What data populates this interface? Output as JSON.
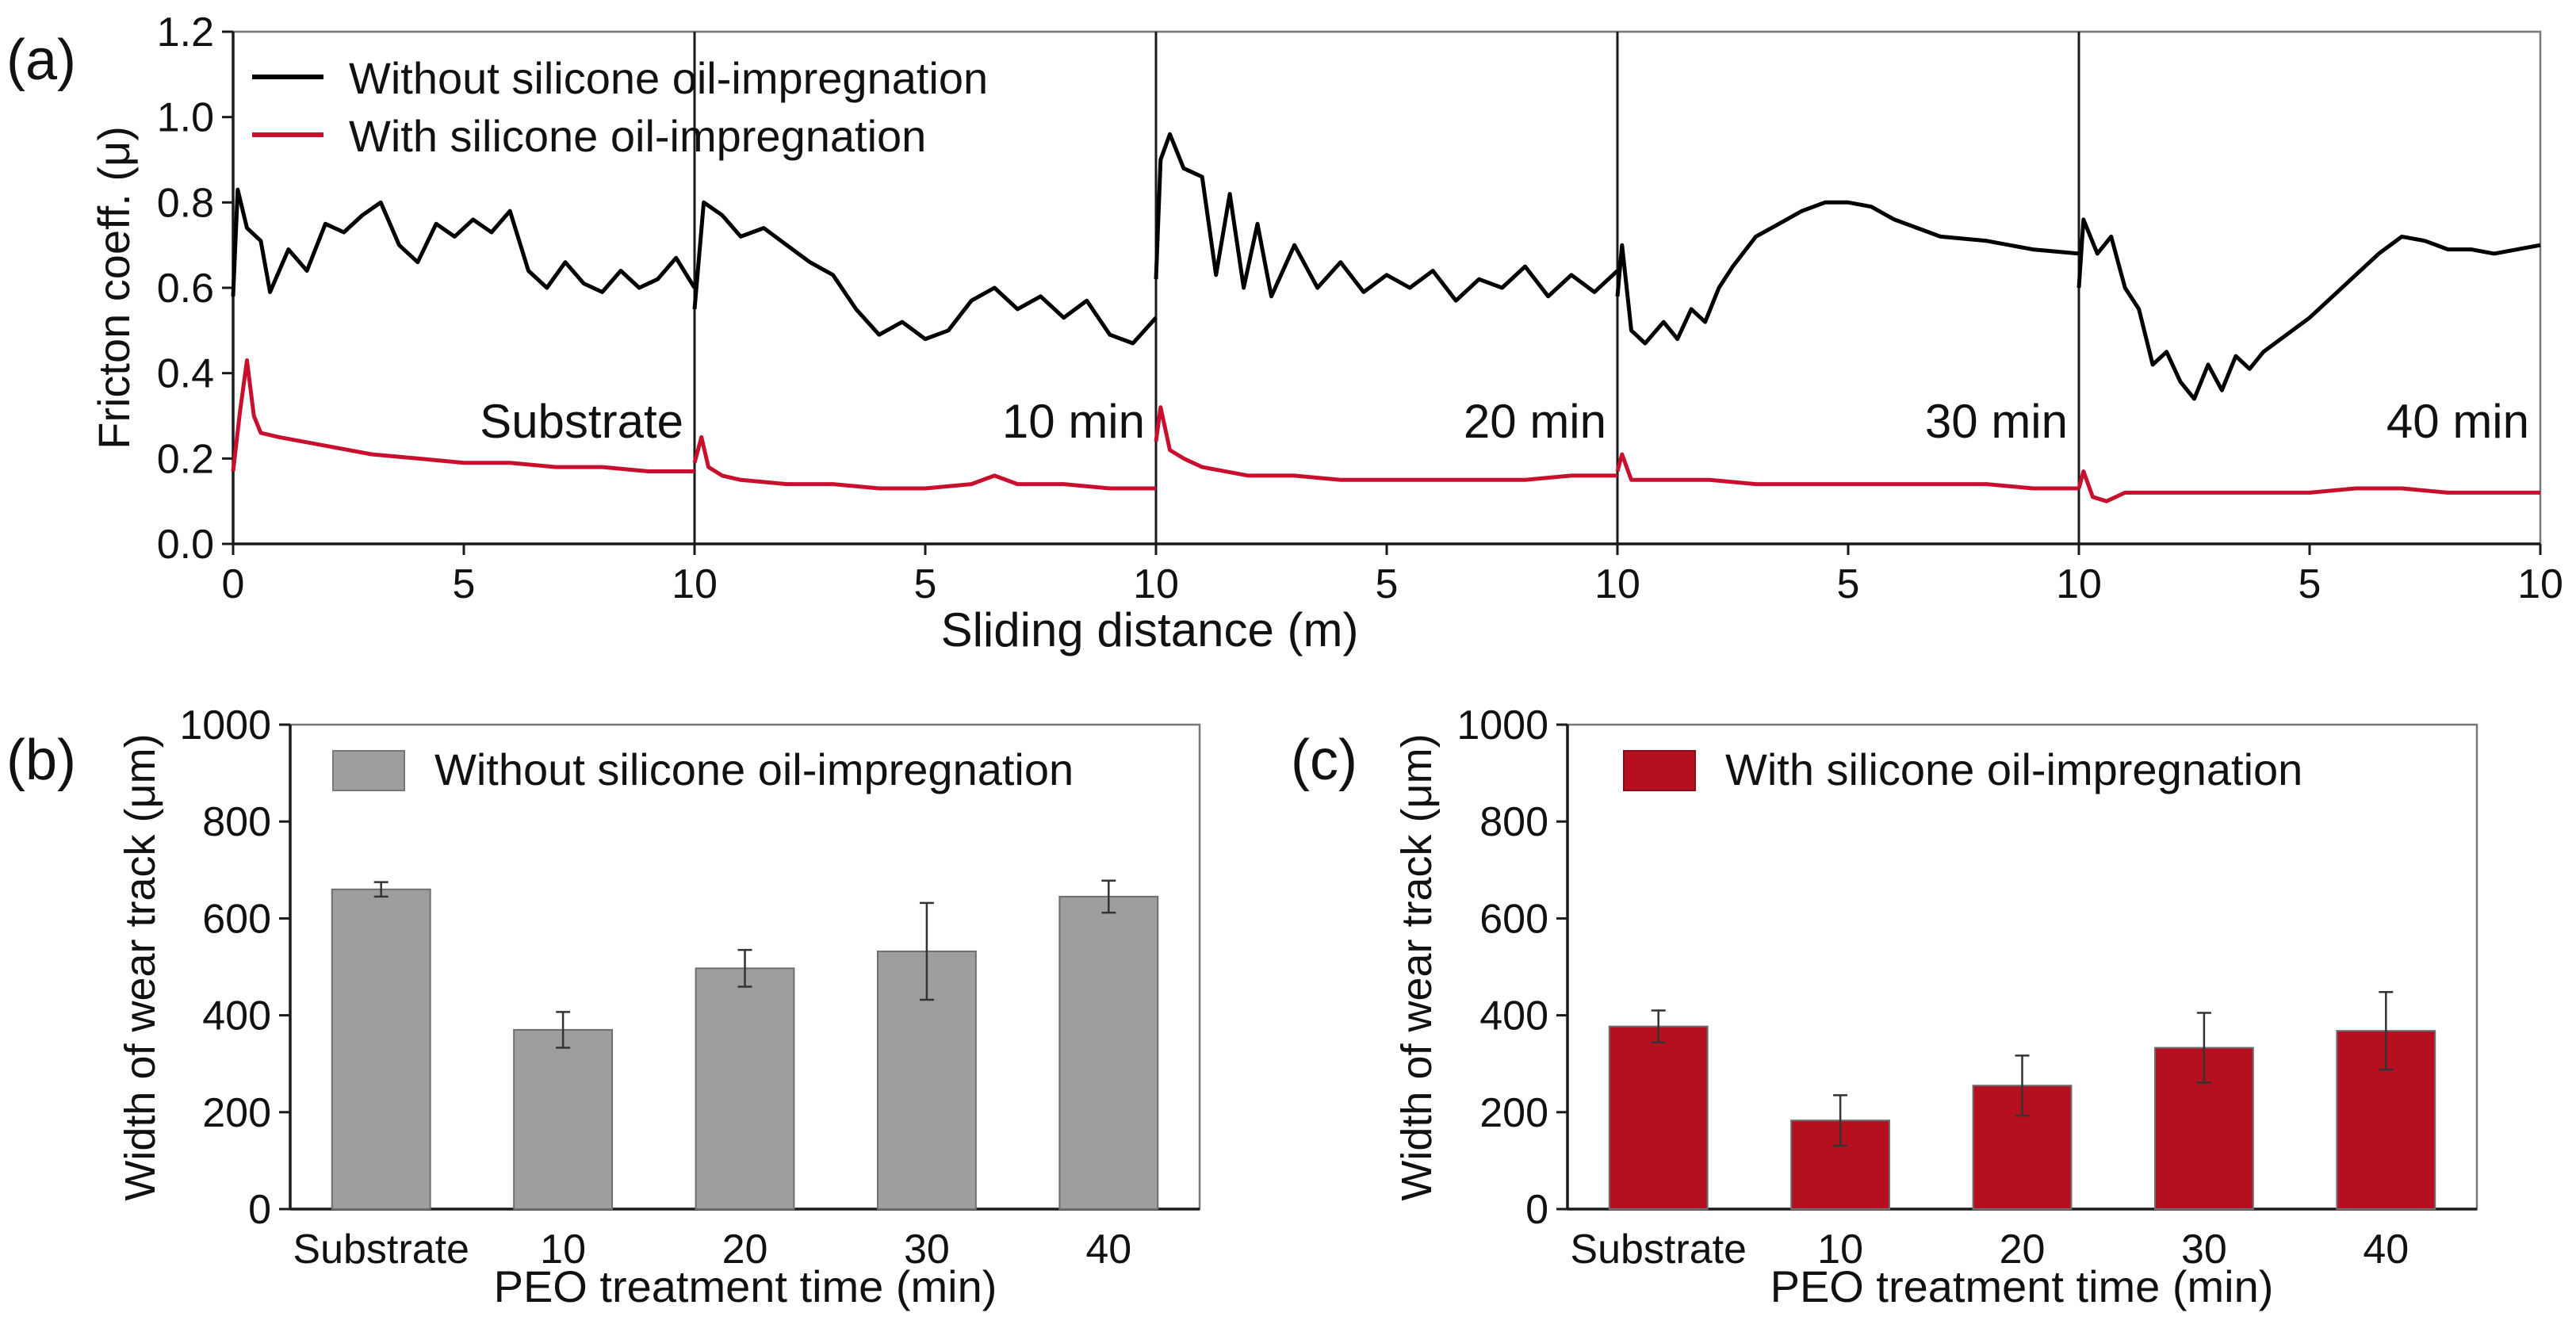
{
  "chart_data": [
    {
      "type": "line",
      "panel_label": "(a)",
      "ylabel": "Fricton coeff. (μ)",
      "xlabel": "Sliding distance (m)",
      "ylim": [
        0.0,
        1.2
      ],
      "yticks": [
        "0.0",
        "0.2",
        "0.4",
        "0.6",
        "0.8",
        "1.0",
        "1.2"
      ],
      "xlim_per_segment": [
        0,
        10
      ],
      "xticks": [
        "0",
        "5",
        "10",
        "5",
        "10",
        "5",
        "10",
        "5",
        "10",
        "5",
        "10"
      ],
      "legend": {
        "position": "top-left",
        "entries": [
          {
            "label": "Without silicone oil-impregnation",
            "color": "#000000"
          },
          {
            "label": "With silicone oil-impregnation",
            "color": "#c8102e"
          }
        ]
      },
      "segments": [
        {
          "label": "Substrate",
          "without_oil": [
            [
              0,
              0.58
            ],
            [
              0.1,
              0.83
            ],
            [
              0.3,
              0.74
            ],
            [
              0.6,
              0.71
            ],
            [
              0.8,
              0.59
            ],
            [
              1.2,
              0.69
            ],
            [
              1.6,
              0.64
            ],
            [
              2.0,
              0.75
            ],
            [
              2.4,
              0.73
            ],
            [
              2.8,
              0.77
            ],
            [
              3.2,
              0.8
            ],
            [
              3.6,
              0.7
            ],
            [
              4.0,
              0.66
            ],
            [
              4.4,
              0.75
            ],
            [
              4.8,
              0.72
            ],
            [
              5.2,
              0.76
            ],
            [
              5.6,
              0.73
            ],
            [
              6.0,
              0.78
            ],
            [
              6.4,
              0.64
            ],
            [
              6.8,
              0.6
            ],
            [
              7.2,
              0.66
            ],
            [
              7.6,
              0.61
            ],
            [
              8.0,
              0.59
            ],
            [
              8.4,
              0.64
            ],
            [
              8.8,
              0.6
            ],
            [
              9.2,
              0.62
            ],
            [
              9.6,
              0.67
            ],
            [
              10,
              0.6
            ]
          ],
          "with_oil": [
            [
              0,
              0.17
            ],
            [
              0.15,
              0.31
            ],
            [
              0.3,
              0.43
            ],
            [
              0.45,
              0.3
            ],
            [
              0.6,
              0.26
            ],
            [
              1.0,
              0.25
            ],
            [
              1.5,
              0.24
            ],
            [
              2.0,
              0.23
            ],
            [
              3.0,
              0.21
            ],
            [
              4.0,
              0.2
            ],
            [
              5.0,
              0.19
            ],
            [
              6.0,
              0.19
            ],
            [
              7.0,
              0.18
            ],
            [
              8.0,
              0.18
            ],
            [
              9.0,
              0.17
            ],
            [
              10,
              0.17
            ]
          ]
        },
        {
          "label": "10 min",
          "without_oil": [
            [
              0,
              0.55
            ],
            [
              0.2,
              0.8
            ],
            [
              0.6,
              0.77
            ],
            [
              1.0,
              0.72
            ],
            [
              1.5,
              0.74
            ],
            [
              2.0,
              0.7
            ],
            [
              2.5,
              0.66
            ],
            [
              3.0,
              0.63
            ],
            [
              3.5,
              0.55
            ],
            [
              4.0,
              0.49
            ],
            [
              4.5,
              0.52
            ],
            [
              5.0,
              0.48
            ],
            [
              5.5,
              0.5
            ],
            [
              6.0,
              0.57
            ],
            [
              6.5,
              0.6
            ],
            [
              7.0,
              0.55
            ],
            [
              7.5,
              0.58
            ],
            [
              8.0,
              0.53
            ],
            [
              8.5,
              0.57
            ],
            [
              9.0,
              0.49
            ],
            [
              9.5,
              0.47
            ],
            [
              10,
              0.53
            ]
          ],
          "with_oil": [
            [
              0,
              0.19
            ],
            [
              0.15,
              0.25
            ],
            [
              0.3,
              0.18
            ],
            [
              0.6,
              0.16
            ],
            [
              1.0,
              0.15
            ],
            [
              2.0,
              0.14
            ],
            [
              3.0,
              0.14
            ],
            [
              4.0,
              0.13
            ],
            [
              5.0,
              0.13
            ],
            [
              6.0,
              0.14
            ],
            [
              6.5,
              0.16
            ],
            [
              7.0,
              0.14
            ],
            [
              8.0,
              0.14
            ],
            [
              9.0,
              0.13
            ],
            [
              10,
              0.13
            ]
          ]
        },
        {
          "label": "20 min",
          "without_oil": [
            [
              0,
              0.62
            ],
            [
              0.1,
              0.9
            ],
            [
              0.3,
              0.96
            ],
            [
              0.6,
              0.88
            ],
            [
              1.0,
              0.86
            ],
            [
              1.3,
              0.63
            ],
            [
              1.6,
              0.82
            ],
            [
              1.9,
              0.6
            ],
            [
              2.2,
              0.75
            ],
            [
              2.5,
              0.58
            ],
            [
              3.0,
              0.7
            ],
            [
              3.5,
              0.6
            ],
            [
              4.0,
              0.66
            ],
            [
              4.5,
              0.59
            ],
            [
              5.0,
              0.63
            ],
            [
              5.5,
              0.6
            ],
            [
              6.0,
              0.64
            ],
            [
              6.5,
              0.57
            ],
            [
              7.0,
              0.62
            ],
            [
              7.5,
              0.6
            ],
            [
              8.0,
              0.65
            ],
            [
              8.5,
              0.58
            ],
            [
              9.0,
              0.63
            ],
            [
              9.5,
              0.59
            ],
            [
              10,
              0.64
            ]
          ],
          "with_oil": [
            [
              0,
              0.24
            ],
            [
              0.1,
              0.32
            ],
            [
              0.3,
              0.22
            ],
            [
              0.6,
              0.2
            ],
            [
              1.0,
              0.18
            ],
            [
              2.0,
              0.16
            ],
            [
              3.0,
              0.16
            ],
            [
              4.0,
              0.15
            ],
            [
              5.0,
              0.15
            ],
            [
              6.0,
              0.15
            ],
            [
              7.0,
              0.15
            ],
            [
              8.0,
              0.15
            ],
            [
              9.0,
              0.16
            ],
            [
              10,
              0.16
            ]
          ]
        },
        {
          "label": "30 min",
          "without_oil": [
            [
              0,
              0.58
            ],
            [
              0.1,
              0.7
            ],
            [
              0.3,
              0.5
            ],
            [
              0.6,
              0.47
            ],
            [
              1.0,
              0.52
            ],
            [
              1.3,
              0.48
            ],
            [
              1.6,
              0.55
            ],
            [
              1.9,
              0.52
            ],
            [
              2.2,
              0.6
            ],
            [
              2.5,
              0.65
            ],
            [
              3.0,
              0.72
            ],
            [
              3.5,
              0.75
            ],
            [
              4.0,
              0.78
            ],
            [
              4.5,
              0.8
            ],
            [
              5.0,
              0.8
            ],
            [
              5.5,
              0.79
            ],
            [
              6.0,
              0.76
            ],
            [
              6.5,
              0.74
            ],
            [
              7.0,
              0.72
            ],
            [
              8.0,
              0.71
            ],
            [
              9.0,
              0.69
            ],
            [
              10,
              0.68
            ]
          ],
          "with_oil": [
            [
              0,
              0.17
            ],
            [
              0.1,
              0.21
            ],
            [
              0.3,
              0.15
            ],
            [
              0.6,
              0.15
            ],
            [
              1.0,
              0.15
            ],
            [
              2.0,
              0.15
            ],
            [
              3.0,
              0.14
            ],
            [
              4.0,
              0.14
            ],
            [
              5.0,
              0.14
            ],
            [
              6.0,
              0.14
            ],
            [
              7.0,
              0.14
            ],
            [
              8.0,
              0.14
            ],
            [
              9.0,
              0.13
            ],
            [
              10,
              0.13
            ]
          ]
        },
        {
          "label": "40 min",
          "without_oil": [
            [
              0,
              0.6
            ],
            [
              0.1,
              0.76
            ],
            [
              0.4,
              0.68
            ],
            [
              0.7,
              0.72
            ],
            [
              1.0,
              0.6
            ],
            [
              1.3,
              0.55
            ],
            [
              1.6,
              0.42
            ],
            [
              1.9,
              0.45
            ],
            [
              2.2,
              0.38
            ],
            [
              2.5,
              0.34
            ],
            [
              2.8,
              0.42
            ],
            [
              3.1,
              0.36
            ],
            [
              3.4,
              0.44
            ],
            [
              3.7,
              0.41
            ],
            [
              4.0,
              0.45
            ],
            [
              4.5,
              0.49
            ],
            [
              5.0,
              0.53
            ],
            [
              5.5,
              0.58
            ],
            [
              6.0,
              0.63
            ],
            [
              6.5,
              0.68
            ],
            [
              7.0,
              0.72
            ],
            [
              7.5,
              0.71
            ],
            [
              8.0,
              0.69
            ],
            [
              8.5,
              0.69
            ],
            [
              9.0,
              0.68
            ],
            [
              9.5,
              0.69
            ],
            [
              10,
              0.7
            ]
          ],
          "with_oil": [
            [
              0,
              0.13
            ],
            [
              0.1,
              0.17
            ],
            [
              0.3,
              0.11
            ],
            [
              0.6,
              0.1
            ],
            [
              1.0,
              0.12
            ],
            [
              2.0,
              0.12
            ],
            [
              3.0,
              0.12
            ],
            [
              4.0,
              0.12
            ],
            [
              5.0,
              0.12
            ],
            [
              6.0,
              0.13
            ],
            [
              7.0,
              0.13
            ],
            [
              8.0,
              0.12
            ],
            [
              9.0,
              0.12
            ],
            [
              10,
              0.12
            ]
          ]
        }
      ]
    },
    {
      "type": "bar",
      "panel_label": "(b)",
      "ylabel": "Width of wear track (μm)",
      "xlabel": "PEO treatment time (min)",
      "ylim": [
        0,
        1000
      ],
      "yticks": [
        "0",
        "200",
        "400",
        "600",
        "800",
        "1000"
      ],
      "legend": {
        "position": "top-left",
        "label": "Without silicone oil-impregnation",
        "color": "#9e9e9e"
      },
      "categories": [
        "Substrate",
        "10",
        "20",
        "30",
        "40"
      ],
      "values": [
        660,
        370,
        497,
        532,
        645
      ],
      "errors": [
        15,
        37,
        38,
        100,
        33
      ],
      "color": "#9e9e9e"
    },
    {
      "type": "bar",
      "panel_label": "(c)",
      "ylabel": "Width of wear track (μm)",
      "xlabel": "PEO treatment time (min)",
      "ylim": [
        0,
        1000
      ],
      "yticks": [
        "0",
        "200",
        "400",
        "600",
        "800",
        "1000"
      ],
      "legend": {
        "position": "top-left",
        "label": "With silicone oil-impregnation",
        "color": "#b5101f"
      },
      "categories": [
        "Substrate",
        "10",
        "20",
        "30",
        "40"
      ],
      "values": [
        377,
        183,
        255,
        333,
        368
      ],
      "errors": [
        33,
        52,
        62,
        72,
        80
      ],
      "color": "#b5101f"
    }
  ]
}
